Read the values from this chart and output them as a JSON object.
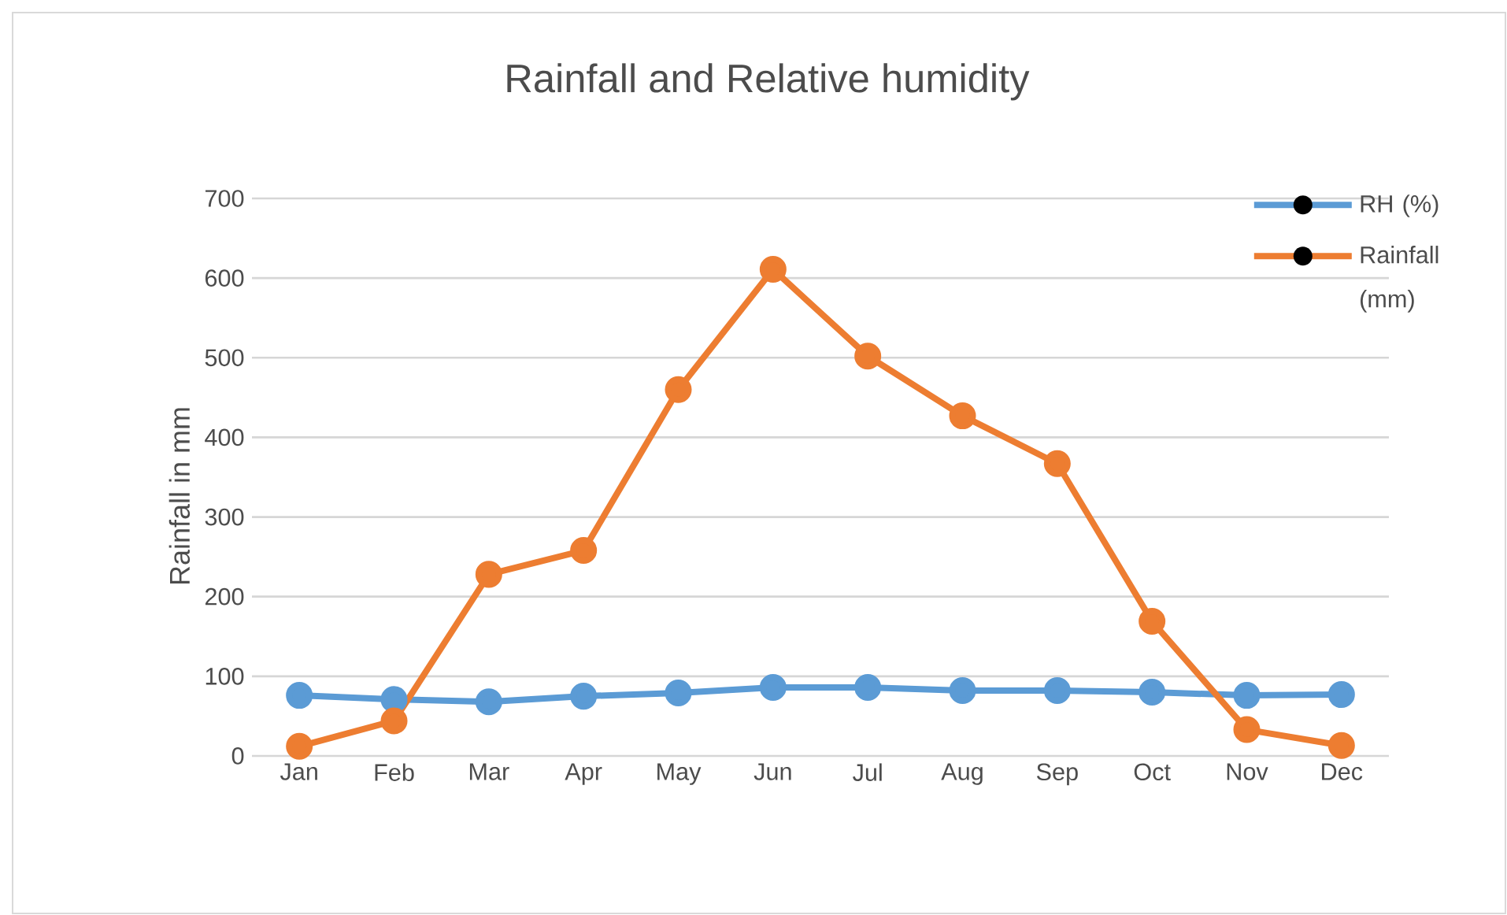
{
  "chart_data": {
    "type": "line",
    "title": "Rainfall and Relative humidity",
    "ylabel": "Rainfall in mm",
    "categories": [
      "Jan",
      "Feb",
      "Mar",
      "Apr",
      "May",
      "Jun",
      "Jul",
      "Aug",
      "Sep",
      "Oct",
      "Nov",
      "Dec"
    ],
    "series": [
      {
        "name": "RH (%)",
        "color": "#5b9bd5",
        "values": [
          76,
          71,
          68,
          75,
          79,
          86,
          86,
          82,
          82,
          80,
          76,
          77
        ]
      },
      {
        "name": "Rainfall (mm)",
        "color": "#ed7d31",
        "values": [
          12,
          44,
          228,
          258,
          460,
          611,
          502,
          427,
          367,
          169,
          33,
          13
        ]
      }
    ],
    "ylim": [
      0,
      700
    ],
    "yticks": [
      0,
      100,
      200,
      300,
      400,
      500,
      600,
      700
    ],
    "grid": "y",
    "legend": "top right",
    "marker": "circle",
    "line_style": "solid"
  }
}
